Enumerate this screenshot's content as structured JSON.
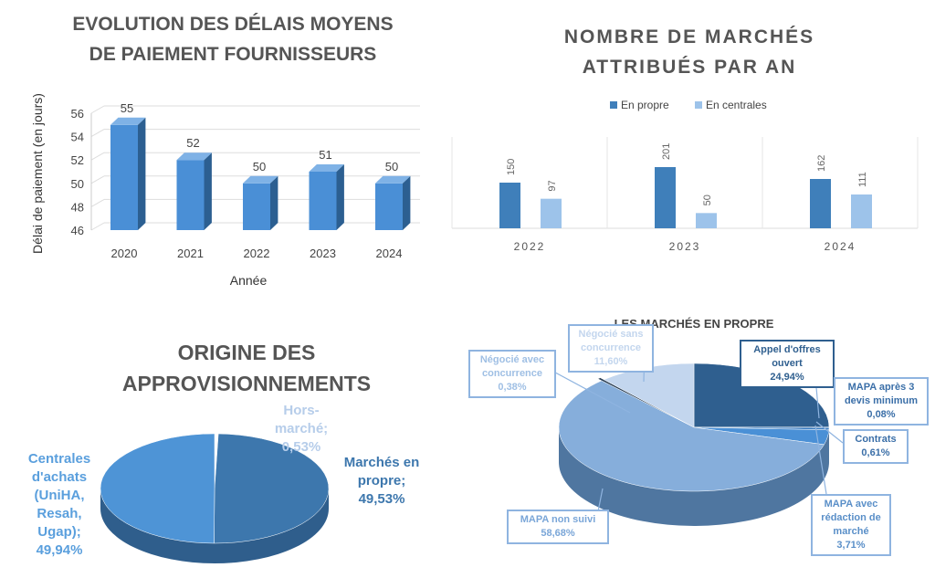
{
  "chart_data": [
    {
      "type": "bar",
      "title": [
        "EVOLUTION DES DÉLAIS MOYENS",
        "DE PAIEMENT FOURNISSEURS"
      ],
      "xlabel": "Année",
      "ylabel": "Délai de paiement (en jours)",
      "categories": [
        "2020",
        "2021",
        "2022",
        "2023",
        "2024"
      ],
      "values": [
        55,
        52,
        50,
        51,
        50
      ],
      "data_labels": [
        "55",
        "52",
        "50",
        "51",
        "50"
      ],
      "ylim": [
        46,
        56
      ],
      "yticks": [
        "46",
        "48",
        "50",
        "52",
        "54",
        "56"
      ],
      "grid": true,
      "color": "#4a8fd6"
    },
    {
      "type": "bar",
      "title": [
        "NOMBRE DE MARCHÉS",
        "ATTRIBUÉS PAR AN"
      ],
      "categories": [
        "2022",
        "2023",
        "2024"
      ],
      "series": [
        {
          "name": "En propre",
          "values": [
            150,
            201,
            162
          ],
          "labels": [
            "150",
            "201",
            "162"
          ],
          "color": "#3f7fba"
        },
        {
          "name": "En centrales",
          "values": [
            97,
            50,
            111
          ],
          "labels": [
            "97",
            "50",
            "111"
          ],
          "color": "#9dc3ea"
        }
      ],
      "legend": "top",
      "ylim": [
        0,
        230
      ]
    },
    {
      "type": "pie",
      "title": [
        "ORIGINE DES",
        "APPROVISIONNEMENTS"
      ],
      "slices": [
        {
          "label": "Hors-marché; 0,53%",
          "lines": [
            "Hors-",
            "marché;",
            "0,53%"
          ],
          "value": 0.53,
          "color": "#ffffff",
          "text_color": "#b6cdea"
        },
        {
          "label": "Marchés en propre; 49,53%",
          "lines": [
            "Marchés en",
            "propre;",
            "49,53%"
          ],
          "value": 49.53,
          "color": "#3d77ad",
          "text_color": "#3d77ad"
        },
        {
          "label": "Centrales d'achats (UniHA, Resah, Ugap); 49,94%",
          "lines": [
            "Centrales",
            "d'achats",
            "(UniHA,",
            "Resah,",
            "Ugap);",
            "49,94%"
          ],
          "value": 49.94,
          "color": "#4e94d6",
          "text_color": "#5a9fdd"
        }
      ]
    },
    {
      "type": "pie",
      "title": "LES MARCHÉS EN PROPRE",
      "slices": [
        {
          "lines": [
            "Appel d'offres",
            "ouvert",
            "24,94%"
          ],
          "value": 24.94,
          "color": "#2f5f8f",
          "text_color": "#2f5f8f"
        },
        {
          "lines": [
            "MAPA après 3",
            "devis minimum",
            "0,08%"
          ],
          "value": 0.08,
          "color": "#3b7cc0",
          "text_color": "#3b6fa8"
        },
        {
          "lines": [
            "Contrats",
            "0,61%"
          ],
          "value": 0.61,
          "color": "#3b7cc0",
          "text_color": "#3b6fa8"
        },
        {
          "lines": [
            "MAPA avec",
            "rédaction de",
            "marché",
            "3,71%"
          ],
          "value": 3.71,
          "color": "#4a90d6",
          "text_color": "#5a8fc8"
        },
        {
          "lines": [
            "MAPA non suivi",
            "58,68%"
          ],
          "value": 58.68,
          "color": "#86aedb",
          "text_color": "#7aa6d8"
        },
        {
          "lines": [
            "Négocié avec",
            "concurrence",
            "0,38%"
          ],
          "value": 0.38,
          "color": "#2a3f55",
          "text_color": "#9fbfe4"
        },
        {
          "lines": [
            "Négocié sans",
            "concurrence",
            "11,60%"
          ],
          "value": 11.6,
          "color": "#c3d6ee",
          "text_color": "#c3d6ee"
        }
      ]
    }
  ]
}
